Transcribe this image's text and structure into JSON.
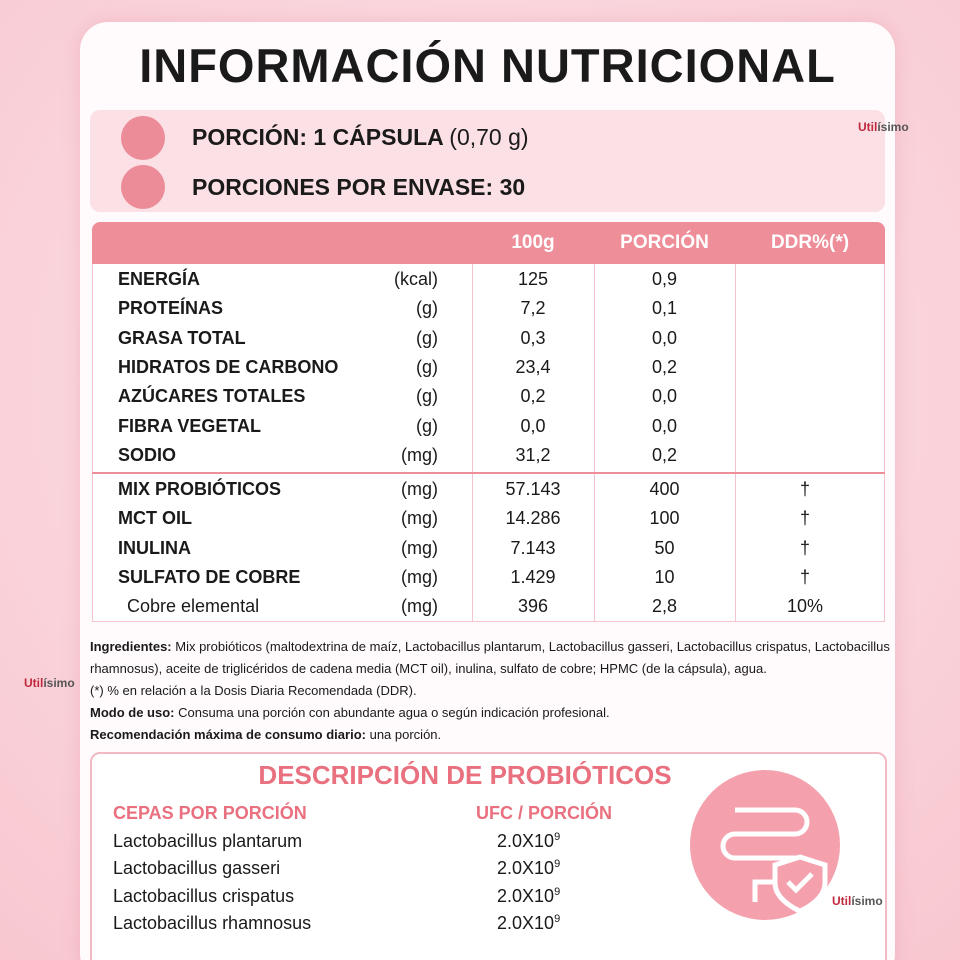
{
  "header": {
    "title": "INFORMACIÓN NUTRICIONAL"
  },
  "brand": {
    "part1": "Util",
    "part2": "ísimo"
  },
  "serving": {
    "portion": "PORCIÓN: 1 CÁPSULA",
    "portion_weight": "(0,70 g)",
    "per_container": "PORCIONES POR ENVASE: 30"
  },
  "table": {
    "columns": [
      "100g",
      "PORCIÓN",
      "DDR%(*)"
    ],
    "rows": [
      {
        "name": "ENERGÍA",
        "unit": "(kcal)",
        "per_100g": "125",
        "portion": "0,9"
      },
      {
        "name": "PROTEÍNAS",
        "unit": "(g)",
        "per_100g": "7,2",
        "portion": "0,1"
      },
      {
        "name": "GRASA TOTAL",
        "unit": "(g)",
        "per_100g": "0,3",
        "portion": "0,0"
      },
      {
        "name": "HIDRATOS DE CARBONO",
        "unit": "(g)",
        "per_100g": "23,4",
        "portion": "0,2"
      },
      {
        "name": "AZÚCARES TOTALES",
        "unit": "(g)",
        "per_100g": "0,2",
        "portion": "0,0"
      },
      {
        "name": "FIBRA VEGETAL",
        "unit": "(g)",
        "per_100g": "0,0",
        "portion": "0,0"
      },
      {
        "name": "SODIO",
        "unit": "(mg)",
        "per_100g": "31,2",
        "portion": "0,2"
      },
      {
        "name": "MIX PROBIÓTICOS",
        "unit": "(mg)",
        "per_100g": "57.143",
        "portion": "400",
        "ddr": "†"
      },
      {
        "name": "MCT OIL",
        "unit": "(mg)",
        "per_100g": "14.286",
        "portion": "100",
        "ddr": "†"
      },
      {
        "name": "INULINA",
        "unit": "(mg)",
        "per_100g": "7.143",
        "portion": "50",
        "ddr": "†"
      },
      {
        "name": "SULFATO DE COBRE",
        "unit": "(mg)",
        "per_100g": "1.429",
        "portion": "10",
        "ddr": "†"
      },
      {
        "name": "Cobre elemental",
        "unit": "(mg)",
        "per_100g": "396",
        "portion": "2,8",
        "ddr": "10%"
      }
    ]
  },
  "notes": {
    "ingredients_label": "Ingredientes:",
    "ingredients": "Mix probióticos (maltodextrina de maíz, Lactobacillus plantarum, Lactobacillus gasseri, Lactobacillus crispatus, Lactobacillus rhamnosus), aceite de triglicéridos de cadena media (MCT oil), inulina, sulfato de cobre; HPMC (de la cápsula), agua.",
    "footnote": "(*) % en relación a la Dosis Diaria Recomendada (DDR).",
    "usage_label": "Modo de uso:",
    "usage": "Consuma una porción con abundante agua o según indicación profesional.",
    "max_label": "Recomendación máxima de consumo diario:",
    "max": "una porción."
  },
  "probiotics": {
    "title": "DESCRIPCIÓN DE PROBIÓTICOS",
    "headers": [
      "CEPAS POR PORCIÓN",
      "UFC / PORCIÓN"
    ],
    "rows": [
      {
        "strain": "Lactobacillus plantarum",
        "ufc": "2.0X10",
        "exp": "9"
      },
      {
        "strain": "Lactobacillus gasseri",
        "ufc": "2.0X10",
        "exp": "9"
      },
      {
        "strain": "Lactobacillus crispatus",
        "ufc": "2.0X10",
        "exp": "9"
      },
      {
        "strain": "Lactobacillus rhamnosus",
        "ufc": "2.0X10",
        "exp": "9"
      }
    ]
  }
}
